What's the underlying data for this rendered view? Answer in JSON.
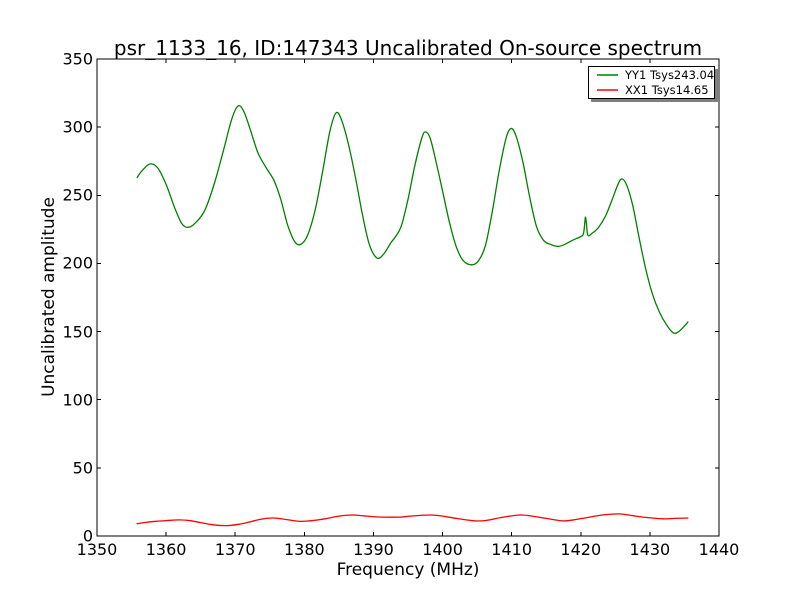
{
  "figure": {
    "background": "#ffffff"
  },
  "chart_data": {
    "type": "line",
    "title": "psr_1133_16, ID:147343 Uncalibrated On-source spectrum",
    "xlabel": "Frequency (MHz)",
    "ylabel": "Uncalibrated amplitude",
    "xlim": [
      1350,
      1440
    ],
    "ylim": [
      0,
      350
    ],
    "x_ticks": [
      1350,
      1360,
      1370,
      1380,
      1390,
      1400,
      1410,
      1420,
      1430,
      1440
    ],
    "y_ticks": [
      0,
      50,
      100,
      150,
      200,
      250,
      300,
      350
    ],
    "grid": false,
    "legend": {
      "position": "upper right",
      "border_color": "#000000",
      "shadow_color": "#7f7f7f"
    },
    "series": [
      {
        "name": "YY1 Tsys243.04",
        "color": "#008000",
        "points": [
          [
            1355.8,
            263
          ],
          [
            1356.6,
            268.5
          ],
          [
            1357.7,
            273
          ],
          [
            1358.8,
            270
          ],
          [
            1360.0,
            258
          ],
          [
            1361.3,
            240
          ],
          [
            1362.3,
            229
          ],
          [
            1363.2,
            226.5
          ],
          [
            1364.2,
            229.5
          ],
          [
            1365.6,
            239
          ],
          [
            1367.0,
            259
          ],
          [
            1368.3,
            283
          ],
          [
            1369.5,
            306
          ],
          [
            1370.4,
            315.5
          ],
          [
            1371.2,
            312
          ],
          [
            1372.2,
            298
          ],
          [
            1373.3,
            281
          ],
          [
            1374.5,
            270
          ],
          [
            1375.6,
            261
          ],
          [
            1376.6,
            247
          ],
          [
            1377.6,
            228
          ],
          [
            1378.6,
            216
          ],
          [
            1379.5,
            214
          ],
          [
            1380.5,
            221
          ],
          [
            1381.6,
            240
          ],
          [
            1382.7,
            269
          ],
          [
            1383.7,
            297
          ],
          [
            1384.6,
            310.5
          ],
          [
            1385.4,
            305
          ],
          [
            1386.4,
            287
          ],
          [
            1387.4,
            263
          ],
          [
            1388.4,
            236
          ],
          [
            1389.4,
            214
          ],
          [
            1390.5,
            204
          ],
          [
            1391.5,
            207
          ],
          [
            1392.5,
            215
          ],
          [
            1393.1,
            219
          ],
          [
            1394.0,
            227
          ],
          [
            1395.0,
            247
          ],
          [
            1396.0,
            272
          ],
          [
            1397.0,
            292
          ],
          [
            1397.5,
            296.5
          ],
          [
            1398.2,
            292
          ],
          [
            1399.0,
            276
          ],
          [
            1400.0,
            253
          ],
          [
            1401.0,
            230
          ],
          [
            1402.0,
            212
          ],
          [
            1403.0,
            202
          ],
          [
            1404.2,
            199
          ],
          [
            1405.2,
            202
          ],
          [
            1406.2,
            213
          ],
          [
            1407.2,
            238
          ],
          [
            1408.2,
            268
          ],
          [
            1409.2,
            292
          ],
          [
            1409.9,
            299
          ],
          [
            1410.6,
            294
          ],
          [
            1411.6,
            275
          ],
          [
            1412.6,
            249
          ],
          [
            1413.6,
            227
          ],
          [
            1414.6,
            217
          ],
          [
            1415.6,
            214
          ],
          [
            1416.7,
            212.5
          ],
          [
            1417.7,
            214
          ],
          [
            1418.8,
            217
          ],
          [
            1419.9,
            219.5
          ],
          [
            1420.4,
            222
          ],
          [
            1420.7,
            234
          ],
          [
            1421.0,
            221
          ],
          [
            1421.6,
            222
          ],
          [
            1422.5,
            226
          ],
          [
            1423.5,
            234
          ],
          [
            1424.4,
            245
          ],
          [
            1425.3,
            257
          ],
          [
            1425.9,
            262
          ],
          [
            1426.6,
            258
          ],
          [
            1427.5,
            243
          ],
          [
            1428.4,
            220
          ],
          [
            1429.4,
            196
          ],
          [
            1430.4,
            177
          ],
          [
            1431.4,
            164
          ],
          [
            1432.4,
            155
          ],
          [
            1433.4,
            149
          ],
          [
            1434.3,
            150.5
          ],
          [
            1435.5,
            157
          ]
        ]
      },
      {
        "name": "XX1 Tsys14.65",
        "color": "#ff0000",
        "points": [
          [
            1355.8,
            9.0
          ],
          [
            1357.0,
            10.0
          ],
          [
            1358.5,
            10.8
          ],
          [
            1360.0,
            11.3
          ],
          [
            1361.9,
            11.8
          ],
          [
            1363.5,
            11.2
          ],
          [
            1365.0,
            9.8
          ],
          [
            1366.8,
            8.2
          ],
          [
            1368.7,
            7.6
          ],
          [
            1370.5,
            8.6
          ],
          [
            1372.0,
            10.2
          ],
          [
            1373.8,
            12.4
          ],
          [
            1375.5,
            13.2
          ],
          [
            1377.0,
            12.4
          ],
          [
            1379.2,
            10.8
          ],
          [
            1381.0,
            11.2
          ],
          [
            1383.0,
            12.6
          ],
          [
            1385.0,
            14.6
          ],
          [
            1387.0,
            15.4
          ],
          [
            1389.0,
            14.6
          ],
          [
            1391.0,
            13.9
          ],
          [
            1393.8,
            13.9
          ],
          [
            1395.5,
            14.7
          ],
          [
            1398.2,
            15.4
          ],
          [
            1400.0,
            14.6
          ],
          [
            1402.0,
            12.9
          ],
          [
            1404.7,
            11.1
          ],
          [
            1406.5,
            11.6
          ],
          [
            1408.5,
            13.6
          ],
          [
            1411.2,
            15.4
          ],
          [
            1413.0,
            14.6
          ],
          [
            1415.0,
            12.9
          ],
          [
            1417.4,
            11.1
          ],
          [
            1419.0,
            11.9
          ],
          [
            1421.0,
            13.6
          ],
          [
            1423.0,
            15.3
          ],
          [
            1425.4,
            16.2
          ],
          [
            1427.0,
            15.3
          ],
          [
            1429.0,
            13.9
          ],
          [
            1431.9,
            12.6
          ],
          [
            1433.5,
            12.9
          ],
          [
            1435.5,
            13.2
          ]
        ]
      }
    ]
  }
}
